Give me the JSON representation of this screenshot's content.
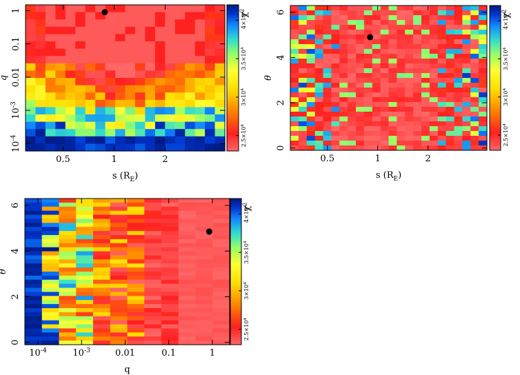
{
  "chart_data": [
    {
      "type": "heatmap",
      "id": "s-q",
      "title": "",
      "xlabel": "s (R_E)",
      "ylabel": "q",
      "x_scale": "log",
      "y_scale": "log",
      "xlim": [
        0.3,
        4.5
      ],
      "ylim": [
        6e-05,
        1.5
      ],
      "x_ticks": [
        {
          "value": 0.5,
          "label": "0.5"
        },
        {
          "value": 1,
          "label": "1"
        },
        {
          "value": 2,
          "label": "2"
        }
      ],
      "y_ticks": [
        {
          "value": 0.0001,
          "label": "10^-4"
        },
        {
          "value": 0.001,
          "label": "10^-3"
        },
        {
          "value": 0.01,
          "label": "0.01"
        },
        {
          "value": 0.1,
          "label": "0.1"
        },
        {
          "value": 1,
          "label": "1"
        }
      ],
      "best_fit": {
        "s": 0.88,
        "q": 0.9
      },
      "z_label": "χ²",
      "z_range": [
        23000,
        42000
      ],
      "colorbar_ticks": [
        {
          "value": 25000,
          "label": "2.5×10^4"
        },
        {
          "value": 30000,
          "label": "3×10^4"
        },
        {
          "value": 35000,
          "label": "3.5×10^4"
        },
        {
          "value": 40000,
          "label": "4×10^4"
        }
      ]
    },
    {
      "type": "heatmap",
      "id": "s-theta",
      "title": "",
      "xlabel": "s (R_E)",
      "ylabel": "θ",
      "x_scale": "log",
      "y_scale": "linear",
      "xlim": [
        0.3,
        4.5
      ],
      "ylim": [
        -0.1,
        6.3
      ],
      "x_ticks": [
        {
          "value": 0.5,
          "label": "0.5"
        },
        {
          "value": 1,
          "label": "1"
        },
        {
          "value": 2,
          "label": "2"
        }
      ],
      "y_ticks": [
        {
          "value": 0,
          "label": "0"
        },
        {
          "value": 2,
          "label": "2"
        },
        {
          "value": 4,
          "label": "4"
        },
        {
          "value": 6,
          "label": "6"
        }
      ],
      "best_fit": {
        "s": 0.9,
        "theta": 4.9
      },
      "z_label": "χ²",
      "z_range": [
        23000,
        42000
      ],
      "colorbar_ticks": [
        {
          "value": 25000,
          "label": "2.5×10^4"
        },
        {
          "value": 30000,
          "label": "3×10^4"
        },
        {
          "value": 35000,
          "label": "3.5×10^4"
        },
        {
          "value": 40000,
          "label": "4×10^4"
        }
      ]
    },
    {
      "type": "heatmap",
      "id": "q-theta",
      "title": "",
      "xlabel": "q",
      "ylabel": "θ",
      "x_scale": "log",
      "y_scale": "linear",
      "xlim": [
        5e-05,
        2.5
      ],
      "ylim": [
        -0.1,
        6.3
      ],
      "x_ticks": [
        {
          "value": 0.0001,
          "label": "10^-4"
        },
        {
          "value": 0.001,
          "label": "10^-3"
        },
        {
          "value": 0.01,
          "label": "0.01"
        },
        {
          "value": 0.1,
          "label": "0.1"
        },
        {
          "value": 1,
          "label": "1"
        }
      ],
      "y_ticks": [
        {
          "value": 0,
          "label": "0"
        },
        {
          "value": 2,
          "label": "2"
        },
        {
          "value": 4,
          "label": "4"
        },
        {
          "value": 6,
          "label": "6"
        }
      ],
      "best_fit": {
        "q": 0.85,
        "theta": 4.85
      },
      "z_label": "χ²",
      "z_range": [
        23000,
        42000
      ],
      "colorbar_ticks": [
        {
          "value": 25000,
          "label": "2.5×10^4"
        },
        {
          "value": 30000,
          "label": "3×10^4"
        },
        {
          "value": 35000,
          "label": "3.5×10^4"
        },
        {
          "value": 40000,
          "label": "4×10^4"
        }
      ]
    }
  ]
}
